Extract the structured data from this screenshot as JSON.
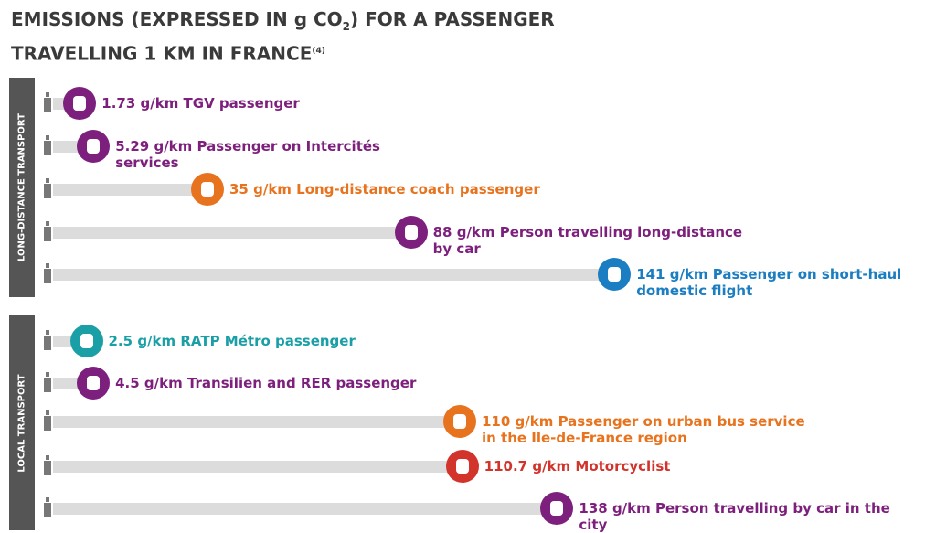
{
  "chart_data": {
    "type": "bar",
    "title": "EMISSIONS (EXPRESSED IN g CO",
    "title_sub": "2",
    "title_rest": ") FOR A PASSENGER TRAVELLING 1 KM IN FRANCE",
    "title_note": "(4)",
    "groups": [
      {
        "name": "LONG-DISTANCE TRANSPORT",
        "items": [
          {
            "value": 1.73,
            "label": "g/km TGV passenger",
            "color": "#7d1f7c"
          },
          {
            "value": 5.29,
            "label": "g/km Passenger on Intercités services",
            "color": "#7d1f7c"
          },
          {
            "value": 35,
            "label": "g/km Long-distance coach passenger",
            "color": "#e8731e"
          },
          {
            "value": 88,
            "label": "g/km Person travelling long-distance by car",
            "color": "#7d1f7c"
          },
          {
            "value": 141,
            "label": "g/km Passenger on short-haul domestic flight",
            "color": "#1b7ec2"
          }
        ]
      },
      {
        "name": "LOCAL TRANSPORT",
        "items": [
          {
            "value": 2.5,
            "label": "g/km RATP Métro passenger",
            "color": "#1a9fa6"
          },
          {
            "value": 4.5,
            "label": "g/km Transilien and RER passenger",
            "color": "#7d1f7c"
          },
          {
            "value": 110,
            "label": "g/km Passenger on urban bus service in the Ile-de-France region",
            "color": "#e8731e"
          },
          {
            "value": 110.7,
            "label": "g/km Motorcyclist",
            "color": "#d2332b"
          },
          {
            "value": 138,
            "label": "g/km Person travelling by car in the city",
            "color": "#7d1f7c"
          }
        ]
      }
    ]
  }
}
